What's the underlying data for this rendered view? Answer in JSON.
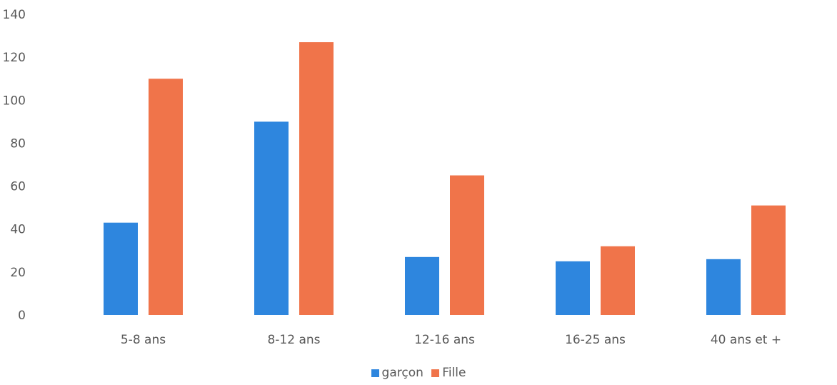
{
  "chart_data": {
    "type": "bar",
    "categories": [
      "5-8 ans",
      "8-12 ans",
      "12-16 ans",
      "16-25 ans",
      "40 ans et +"
    ],
    "series": [
      {
        "name": "garçon",
        "values": [
          43,
          90,
          27,
          25,
          26
        ],
        "color": "#2E86DE"
      },
      {
        "name": "Fille",
        "values": [
          110,
          127,
          65,
          32,
          51
        ],
        "color": "#F0744A"
      }
    ],
    "ylim": [
      0,
      140
    ],
    "yticks": [
      0,
      20,
      40,
      60,
      80,
      100,
      120,
      140
    ],
    "grid": false,
    "legend_position": "bottom"
  }
}
